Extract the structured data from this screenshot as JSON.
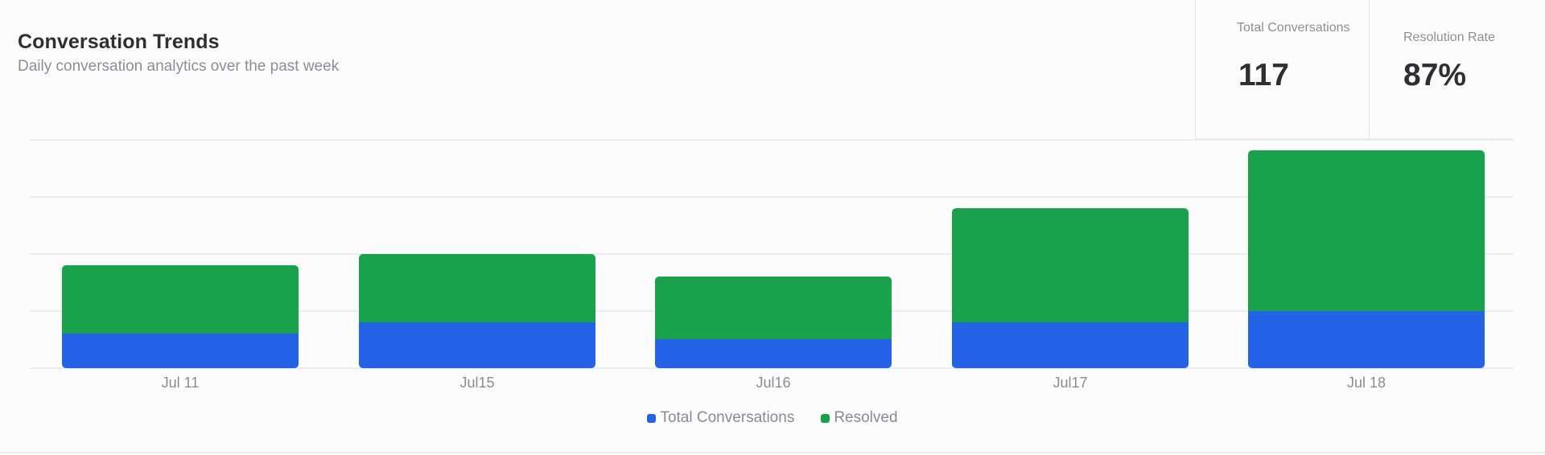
{
  "header": {
    "title": "Conversation Trends",
    "subtitle": "Daily conversation analytics over the past week"
  },
  "stats": [
    {
      "label": "Total Conversations",
      "value": "117"
    },
    {
      "label": "Resolution Rate",
      "value": "87%"
    }
  ],
  "legend": [
    {
      "label": "Total Conversations",
      "color": "#2463e8"
    },
    {
      "label": "Resolved",
      "color": "#1aa14b"
    }
  ],
  "chart_data": {
    "type": "bar",
    "stacked": true,
    "title": "Conversation Trends",
    "subtitle": "Daily conversation analytics over the past week",
    "categories": [
      "Jul 11",
      "Jul15",
      "Jul16",
      "Jul17",
      "Jul 18"
    ],
    "series": [
      {
        "name": "Total Conversations",
        "color": "#2463e8",
        "values": [
          6,
          8,
          5,
          8,
          10
        ]
      },
      {
        "name": "Resolved",
        "color": "#1aa14b",
        "values": [
          12,
          12,
          11,
          20,
          28
        ]
      }
    ],
    "xlabel": "",
    "ylabel": "",
    "ylim": [
      0,
      40
    ],
    "grid": true,
    "y_tick_labels_visible": false,
    "legend_position": "bottom"
  }
}
